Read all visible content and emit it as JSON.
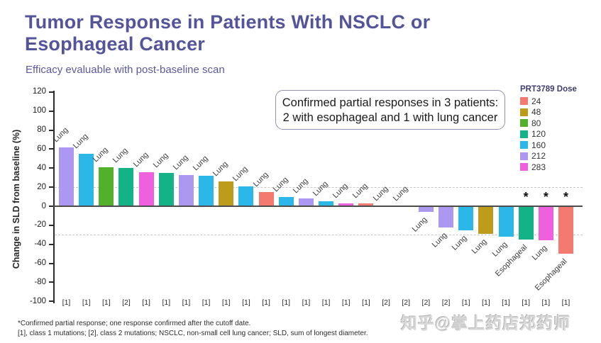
{
  "slide": {
    "title": "Tumor Response in Patients With NSCLC or Esophageal Cancer",
    "subtitle": "Efficacy evaluable with post-baseline scan",
    "annotation": {
      "line1": "Confirmed partial responses in 3 patients:",
      "line2": "2 with esophageal and 1 with lung cancer"
    },
    "footnotes": [
      "*Confirmed partial response; one response confirmed after the cutoff date.",
      "[1], class 1 mutations; [2], class 2 mutations; NSCLC, non-small cell lung cancer; SLD, sum of longest diameter."
    ],
    "watermark": "知乎@掌上药店郑药师",
    "colors": {
      "title": "#54549B",
      "zero_line": "#4d4d4d",
      "grid": "#c6c6c6",
      "asterisk": "#111111"
    }
  },
  "legend": {
    "title": "PRT3789 Dose",
    "items": [
      {
        "label": "24",
        "color": "#F4796E"
      },
      {
        "label": "48",
        "color": "#BD9B1B"
      },
      {
        "label": "80",
        "color": "#52B02B"
      },
      {
        "label": "120",
        "color": "#14B287"
      },
      {
        "label": "160",
        "color": "#2BB8E9"
      },
      {
        "label": "212",
        "color": "#AC97F1"
      },
      {
        "label": "283",
        "color": "#EE60DC"
      }
    ]
  },
  "chart_data": {
    "type": "bar",
    "title": "Tumor Response in Patients With NSCLC or Esophageal Cancer",
    "xlabel": "",
    "ylabel": "Change in SLD from baseline (%)",
    "ylim": [
      -100,
      120
    ],
    "yticks": [
      120,
      100,
      80,
      60,
      40,
      20,
      0,
      -20,
      -40,
      -60,
      -80,
      -100
    ],
    "reference_lines": [
      20,
      -30
    ],
    "grid": "dashed-reference-only",
    "legend_position": "right",
    "legend_title": "PRT3789 Dose",
    "patients": [
      {
        "site": "Lung",
        "value": 62,
        "dose": "212",
        "mutation": "[1]",
        "confirmed": false
      },
      {
        "site": "Lung",
        "value": 55,
        "dose": "160",
        "mutation": "[1]",
        "confirmed": false
      },
      {
        "site": "Lung",
        "value": 41,
        "dose": "80",
        "mutation": "[1]",
        "confirmed": false
      },
      {
        "site": "Lung",
        "value": 40,
        "dose": "120",
        "mutation": "[2]",
        "confirmed": false
      },
      {
        "site": "Lung",
        "value": 36,
        "dose": "283",
        "mutation": "[1]",
        "confirmed": false
      },
      {
        "site": "Lung",
        "value": 35,
        "dose": "120",
        "mutation": "[1]",
        "confirmed": false
      },
      {
        "site": "Lung",
        "value": 33,
        "dose": "212",
        "mutation": "[1]",
        "confirmed": false
      },
      {
        "site": "Lung",
        "value": 32,
        "dose": "160",
        "mutation": "[1]",
        "confirmed": false
      },
      {
        "site": "Lung",
        "value": 26,
        "dose": "48",
        "mutation": "[1]",
        "confirmed": false
      },
      {
        "site": "Lung",
        "value": 21,
        "dose": "160",
        "mutation": "[1]",
        "confirmed": false
      },
      {
        "site": "Lung",
        "value": 15,
        "dose": "24",
        "mutation": "[1]",
        "confirmed": false
      },
      {
        "site": "Lung",
        "value": 10,
        "dose": "160",
        "mutation": "[1]",
        "confirmed": false
      },
      {
        "site": "Lung",
        "value": 8,
        "dose": "212",
        "mutation": "[1]",
        "confirmed": false
      },
      {
        "site": "Lung",
        "value": 5,
        "dose": "160",
        "mutation": "[1]",
        "confirmed": false
      },
      {
        "site": "Lung",
        "value": 3,
        "dose": "283",
        "mutation": "[1]",
        "confirmed": false
      },
      {
        "site": "Lung",
        "value": 3,
        "dose": "24",
        "mutation": "[1]",
        "confirmed": false
      },
      {
        "site": "Lung",
        "value": 0,
        "dose": null,
        "mutation": "[2]",
        "confirmed": false
      },
      {
        "site": "Lung",
        "value": 0,
        "dose": null,
        "mutation": "[2]",
        "confirmed": false
      },
      {
        "site": "Lung",
        "value": -6,
        "dose": "212",
        "mutation": "[2]",
        "confirmed": false
      },
      {
        "site": "Lung",
        "value": -22,
        "dose": "212",
        "mutation": "[2]",
        "confirmed": false
      },
      {
        "site": "Lung",
        "value": -25,
        "dose": "160",
        "mutation": "[1]",
        "confirmed": false
      },
      {
        "site": "Lung",
        "value": -29,
        "dose": "48",
        "mutation": "[1]",
        "confirmed": false
      },
      {
        "site": "Lung",
        "value": -32,
        "dose": "160",
        "mutation": "[1]",
        "confirmed": false
      },
      {
        "site": "Esophageal",
        "value": -35,
        "dose": "120",
        "mutation": "[1]",
        "confirmed": true
      },
      {
        "site": "Lung",
        "value": -36,
        "dose": "283",
        "mutation": "[1]",
        "confirmed": true
      },
      {
        "site": "Esophageal",
        "value": -50,
        "dose": "24",
        "mutation": "[1]",
        "confirmed": true
      }
    ]
  }
}
